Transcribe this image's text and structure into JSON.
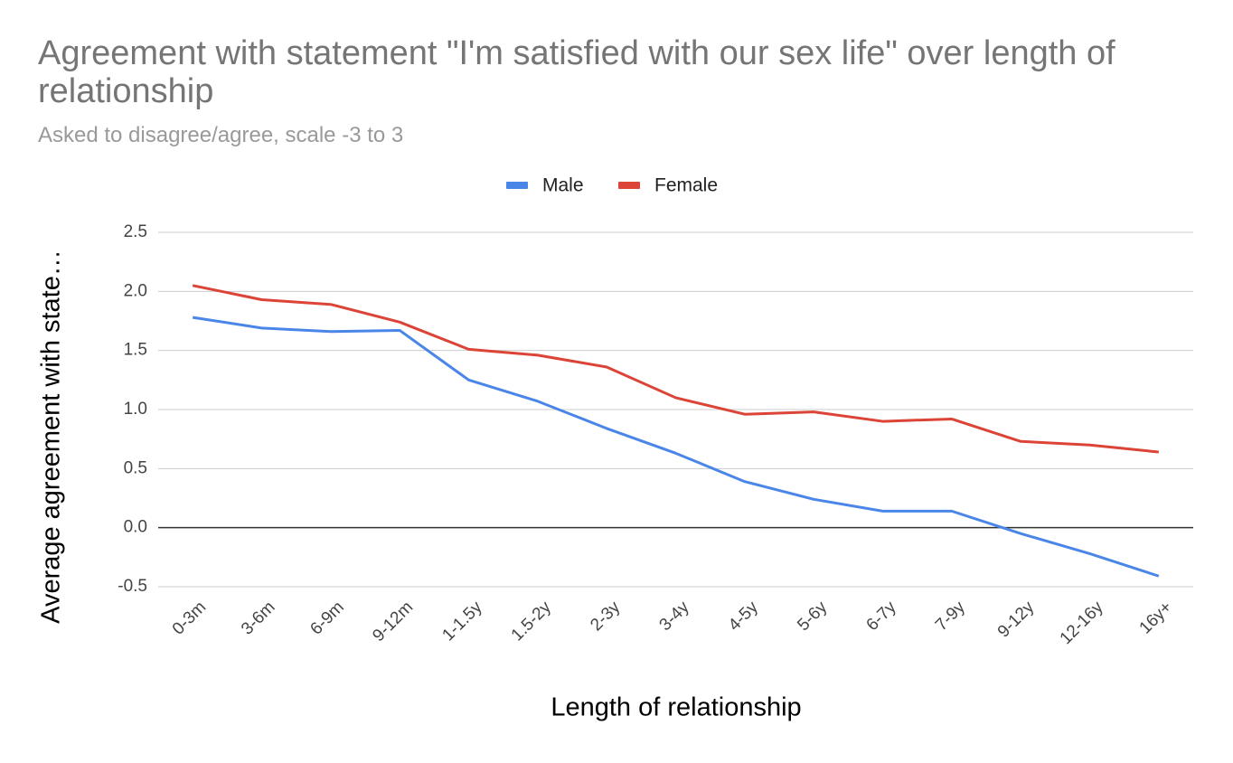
{
  "chart_data": {
    "type": "line",
    "title": "Agreement with statement \"I'm satisfied with our sex life\" over length of relationship",
    "subtitle": "Asked to disagree/agree, scale -3 to 3",
    "x_label": "Length of relationship",
    "y_label": "Average agreement with state…",
    "categories": [
      "0-3m",
      "3-6m",
      "6-9m",
      "9-12m",
      "1-1.5y",
      "1.5-2y",
      "2-3y",
      "3-4y",
      "4-5y",
      "5-6y",
      "6-7y",
      "7-9y",
      "9-12y",
      "12-16y",
      "16y+"
    ],
    "series": [
      {
        "name": "Male",
        "color": "#4a86e8",
        "values": [
          1.78,
          1.69,
          1.66,
          1.67,
          1.25,
          1.07,
          0.84,
          0.63,
          0.39,
          0.24,
          0.14,
          0.14,
          -0.05,
          -0.22,
          -0.41
        ]
      },
      {
        "name": "Female",
        "color": "#db4437",
        "values": [
          2.05,
          1.93,
          1.89,
          1.74,
          1.51,
          1.46,
          1.36,
          1.1,
          0.96,
          0.98,
          0.9,
          0.92,
          0.73,
          0.7,
          0.64
        ]
      }
    ],
    "ylim": [
      -0.5,
      2.5
    ],
    "yticks": [
      -0.5,
      {
        "value": 0,
        "label": "0.0"
      },
      0.5,
      {
        "value": 1,
        "label": "1.0"
      },
      1.5,
      {
        "value": 2,
        "label": "2.0"
      },
      2.5
    ],
    "grid": true,
    "legend": "top"
  }
}
